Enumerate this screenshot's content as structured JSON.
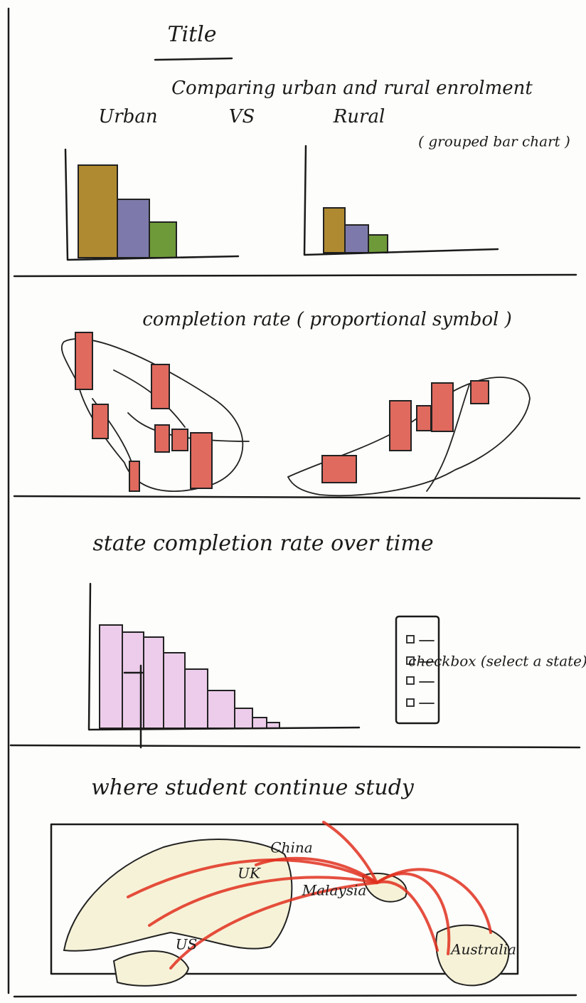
{
  "header": {
    "title": "Title",
    "subtitle": "Comparing urban and rural enrolment"
  },
  "enrolment": {
    "left_label": "Urban",
    "versus": "VS",
    "right_label": "Rural",
    "note": "( grouped bar chart )"
  },
  "completion_map": {
    "title": "completion rate ( proportional symbol )"
  },
  "state_trend": {
    "title": "state completion rate over time",
    "control_note": "checkbox (select a state)"
  },
  "destinations": {
    "title": "where student continue study",
    "places": [
      "China",
      "UK",
      "Malaysia",
      "US",
      "Australia"
    ]
  }
}
